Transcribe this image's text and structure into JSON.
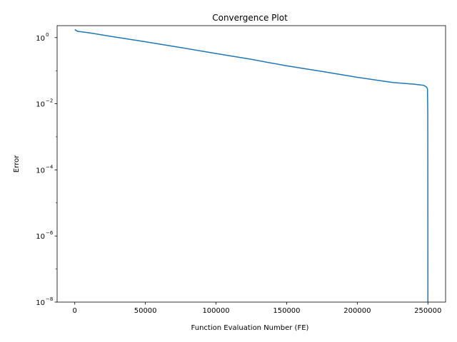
{
  "chart_data": {
    "type": "line",
    "title": "Convergence Plot",
    "xlabel": "Function Evaluation Number (FE)",
    "ylabel": "Error",
    "y_scale": "log",
    "xlim": [
      -12500,
      262500
    ],
    "ylim": [
      1e-08,
      2.3
    ],
    "x_ticks": [
      {
        "value": 0,
        "label": "0"
      },
      {
        "value": 50000,
        "label": "50000"
      },
      {
        "value": 100000,
        "label": "100000"
      },
      {
        "value": 150000,
        "label": "150000"
      },
      {
        "value": 200000,
        "label": "200000"
      },
      {
        "value": 250000,
        "label": "250000"
      }
    ],
    "y_ticks": [
      {
        "value": 1,
        "base": "10",
        "exp": "0"
      },
      {
        "value": 0.01,
        "base": "10",
        "exp": "−2"
      },
      {
        "value": 0.0001,
        "base": "10",
        "exp": "−4"
      },
      {
        "value": 1e-06,
        "base": "10",
        "exp": "−6"
      },
      {
        "value": 1e-08,
        "base": "10",
        "exp": "−8"
      }
    ],
    "grid": false,
    "legend": "none",
    "series": [
      {
        "color": "#1f77b4",
        "x": [
          0,
          2000,
          10000,
          25000,
          50000,
          75000,
          100000,
          125000,
          150000,
          175000,
          200000,
          225000,
          240000,
          247000,
          249000,
          249700,
          249900,
          250000
        ],
        "y": [
          1.75,
          1.55,
          1.4,
          1.1,
          0.75,
          0.5,
          0.33,
          0.22,
          0.14,
          0.095,
          0.063,
          0.044,
          0.039,
          0.036,
          0.032,
          0.028,
          0.005,
          1e-08
        ]
      }
    ]
  }
}
